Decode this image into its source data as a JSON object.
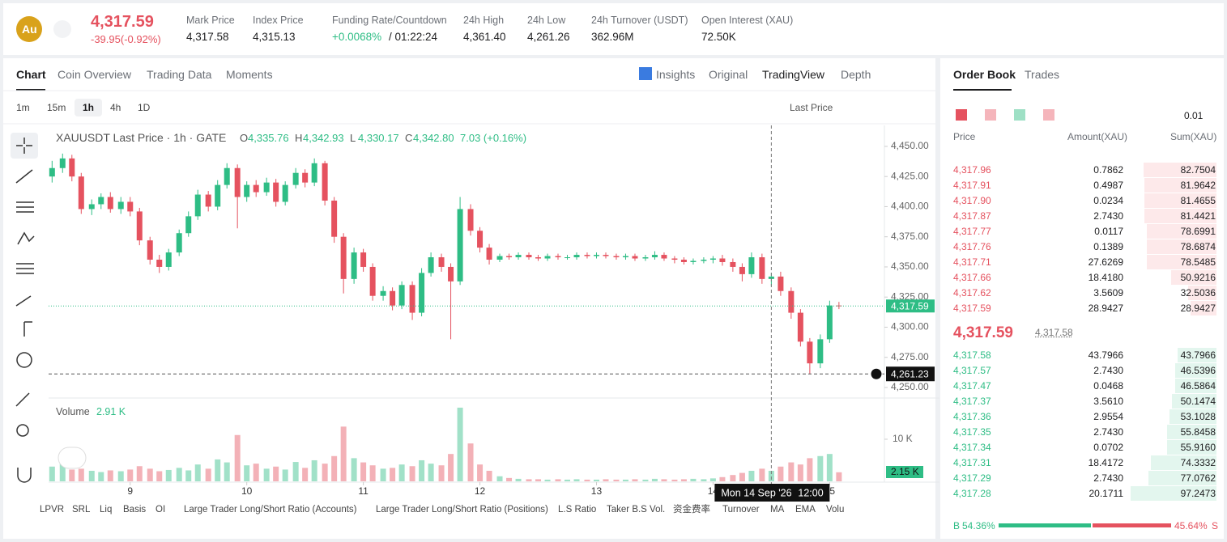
{
  "header": {
    "symbol_icon": "Au",
    "price": "4,317.59",
    "change": "-39.95(-0.92%)",
    "stats": [
      {
        "label": "Mark Price",
        "value": "4,317.58"
      },
      {
        "label": "Index Price",
        "value": "4,315.13"
      },
      {
        "label": "Funding Rate/Countdown",
        "value": "+0.0068%",
        "countdown": "/ 01:22:24"
      },
      {
        "label": "24h High",
        "value": "4,361.40"
      },
      {
        "label": "24h Low",
        "value": "4,261.26"
      },
      {
        "label": "24h Turnover (USDT)",
        "value": "362.96M"
      },
      {
        "label": "Open Interest (XAU)",
        "value": "72.50K"
      }
    ]
  },
  "tabs": [
    "Chart",
    "Coin Overview",
    "Trading Data",
    "Moments"
  ],
  "view_tabs": [
    "Insights",
    "Original",
    "TradingView",
    "Depth"
  ],
  "intervals": [
    "1m",
    "15m",
    "1h",
    "4h",
    "1D"
  ],
  "price_source": "Last Price",
  "indicators": [
    "LPVR",
    "SRL",
    "Liq",
    "Basis",
    "OI",
    "Large Trader Long/Short Ratio (Accounts)",
    "Large Trader Long/Short Ratio (Positions)",
    "L.S Ratio",
    "Taker B.S Vol.",
    "资金费率",
    "Turnover",
    "MA",
    "EMA",
    "Volu"
  ],
  "chart_data": {
    "type": "candlestick",
    "title": "XAUUSDT Last Price · 1h · GATE",
    "ohlc_legend": [
      {
        "key": "O",
        "value": "4,335.76"
      },
      {
        "key": "H",
        "value": "4,342.93"
      },
      {
        "key": "L",
        "value": "4,330.17"
      },
      {
        "key": "C",
        "value": "4,342.80"
      }
    ],
    "change": "7.03 (+0.16%)",
    "volume_title": "Volume",
    "volume_value": "2.91 K",
    "volume_last": "2.15 K",
    "up_color": "#2ebd85",
    "down_color": "#e5525f",
    "x": [
      8.33,
      8.42,
      8.5,
      8.58,
      8.67,
      8.75,
      8.83,
      8.92,
      9,
      9.08,
      9.17,
      9.25,
      9.33,
      9.42,
      9.5,
      9.58,
      9.67,
      9.75,
      9.83,
      9.92,
      10,
      10.08,
      10.17,
      10.25,
      10.33,
      10.42,
      10.5,
      10.58,
      10.67,
      10.75,
      10.83,
      10.92,
      11,
      11.08,
      11.17,
      11.25,
      11.33,
      11.42,
      11.5,
      11.58,
      11.67,
      11.75,
      11.83,
      11.92,
      12,
      12.08,
      12.17,
      12.25,
      12.33,
      12.42,
      12.5,
      12.58,
      12.67,
      12.75,
      12.83,
      12.92,
      13,
      13.08,
      13.17,
      13.25,
      13.33,
      13.42,
      13.5,
      13.58,
      13.67,
      13.75,
      13.83,
      13.92,
      14,
      14.08,
      14.17,
      14.25,
      14.33,
      14.42,
      14.5,
      14.58,
      14.67,
      14.75,
      14.83,
      14.92,
      15,
      15.08
    ],
    "open": [
      4425,
      4432,
      4440,
      4425,
      4398,
      4402,
      4408,
      4398,
      4404,
      4396,
      4372,
      4356,
      4350,
      4362,
      4378,
      4392,
      4410,
      4400,
      4418,
      4432,
      4408,
      4418,
      4412,
      4420,
      4404,
      4418,
      4428,
      4420,
      4436,
      4405,
      4375,
      4340,
      4362,
      4350,
      4326,
      4330,
      4318,
      4335,
      4312,
      4345,
      4358,
      4350,
      4338,
      4398,
      4380,
      4366,
      4356,
      4359,
      4358,
      4360,
      4358,
      4357,
      4359,
      4358,
      4358,
      4360,
      4359,
      4360,
      4359,
      4358,
      4359,
      4357,
      4358,
      4360,
      4357,
      4356,
      4354,
      4355,
      4356,
      4357,
      4354,
      4350,
      4344,
      4358,
      4340,
      4342,
      4330,
      4312,
      4288,
      4270,
      4290,
      4318
    ],
    "high": [
      4438,
      4444,
      4443,
      4428,
      4406,
      4411,
      4412,
      4408,
      4408,
      4399,
      4375,
      4360,
      4365,
      4381,
      4396,
      4414,
      4413,
      4422,
      4436,
      4435,
      4421,
      4422,
      4424,
      4423,
      4421,
      4432,
      4431,
      4440,
      4438,
      4408,
      4378,
      4366,
      4365,
      4353,
      4334,
      4333,
      4338,
      4338,
      4349,
      4362,
      4361,
      4353,
      4408,
      4402,
      4383,
      4369,
      4361,
      4361,
      4362,
      4362,
      4360,
      4361,
      4361,
      4360,
      4362,
      4362,
      4362,
      4362,
      4361,
      4361,
      4361,
      4360,
      4363,
      4362,
      4359,
      4358,
      4357,
      4358,
      4359,
      4360,
      4357,
      4353,
      4362,
      4361,
      4345,
      4346,
      4333,
      4315,
      4291,
      4294,
      4322,
      4321
    ],
    "low": [
      4420,
      4428,
      4421,
      4394,
      4393,
      4398,
      4395,
      4394,
      4392,
      4368,
      4352,
      4345,
      4347,
      4359,
      4375,
      4389,
      4396,
      4397,
      4415,
      4382,
      4404,
      4408,
      4409,
      4400,
      4401,
      4415,
      4416,
      4417,
      4401,
      4370,
      4328,
      4336,
      4346,
      4322,
      4322,
      4314,
      4315,
      4306,
      4309,
      4342,
      4346,
      4290,
      4335,
      4376,
      4362,
      4352,
      4354,
      4356,
      4356,
      4356,
      4355,
      4355,
      4356,
      4356,
      4356,
      4357,
      4357,
      4357,
      4356,
      4356,
      4355,
      4355,
      4356,
      4355,
      4353,
      4352,
      4352,
      4353,
      4353,
      4351,
      4346,
      4338,
      4341,
      4336,
      4334,
      4326,
      4307,
      4284,
      4261.23,
      4266,
      4287,
      4315
    ],
    "close": [
      4432,
      4440,
      4425,
      4398,
      4402,
      4408,
      4398,
      4404,
      4396,
      4372,
      4356,
      4350,
      4362,
      4378,
      4392,
      4410,
      4400,
      4418,
      4432,
      4408,
      4418,
      4412,
      4420,
      4404,
      4418,
      4428,
      4420,
      4436,
      4405,
      4375,
      4340,
      4362,
      4350,
      4326,
      4330,
      4318,
      4335,
      4312,
      4345,
      4358,
      4350,
      4338,
      4398,
      4380,
      4366,
      4356,
      4359,
      4358,
      4360,
      4358,
      4357,
      4359,
      4358,
      4358,
      4360,
      4359,
      4360,
      4359,
      4358,
      4359,
      4357,
      4358,
      4360,
      4357,
      4356,
      4354,
      4355,
      4356,
      4357,
      4354,
      4350,
      4344,
      4358,
      4340,
      4342,
      4330,
      4312,
      4288,
      4270,
      4290,
      4318,
      4317.59
    ],
    "volume": [
      3500,
      4200,
      2800,
      3000,
      2500,
      2200,
      2600,
      2400,
      2800,
      3600,
      3000,
      2400,
      2700,
      3200,
      2600,
      4000,
      3000,
      5200,
      4500,
      11000,
      3800,
      4200,
      3000,
      3500,
      2800,
      4600,
      3200,
      5000,
      4200,
      6000,
      13000,
      5500,
      4500,
      3800,
      3000,
      3200,
      4000,
      3600,
      5000,
      4200,
      3800,
      6500,
      17500,
      9000,
      4000,
      2500,
      1200,
      800,
      600,
      500,
      500,
      400,
      500,
      400,
      500,
      400,
      400,
      500,
      400,
      400,
      500,
      400,
      600,
      500,
      400,
      500,
      600,
      500,
      700,
      1000,
      1500,
      2000,
      2500,
      3000,
      2500,
      3500,
      4500,
      4000,
      5500,
      6000,
      6500,
      2150
    ],
    "xlim": [
      8.3,
      15.47
    ],
    "xticks": [
      9,
      10,
      11,
      12,
      13,
      14,
      15
    ],
    "ylim": [
      4242.6,
      4467.4
    ],
    "yticks": [
      {
        "value": 4250,
        "label": "4,250.00"
      },
      {
        "value": 4275,
        "label": "4,275.00"
      },
      {
        "value": 4300,
        "label": "4,300.00"
      },
      {
        "value": 4325,
        "label": "4,325.00"
      },
      {
        "value": 4350,
        "label": "4,350.00"
      },
      {
        "value": 4375,
        "label": "4,375.00"
      },
      {
        "value": 4400,
        "label": "4,400.00"
      },
      {
        "value": 4425,
        "label": "4,425.00"
      },
      {
        "value": 4450,
        "label": "4,450.00"
      }
    ],
    "volume_ylim": [
      0,
      19600
    ],
    "volume_yticks": [
      {
        "value": 10000,
        "label": "10 K"
      }
    ],
    "grid": false,
    "last_price": {
      "value": 4317.59,
      "label": "4,317.59"
    },
    "crosshair": {
      "x": 14.5,
      "value": 4261.23,
      "label": "4,261.23",
      "time": "Mon 14 Sep '26",
      "hour": "12:00"
    }
  },
  "order_book": {
    "tabs": [
      "Order Book",
      "Trades"
    ],
    "precision": "0.01",
    "columns": [
      "Price",
      "Amount(XAU)",
      "Sum(XAU)"
    ],
    "asks": [
      [
        "4,317.96",
        "0.7862",
        "82.7504"
      ],
      [
        "4,317.91",
        "0.4987",
        "81.9642"
      ],
      [
        "4,317.90",
        "0.0234",
        "81.4655"
      ],
      [
        "4,317.87",
        "2.7430",
        "81.4421"
      ],
      [
        "4,317.77",
        "0.0117",
        "78.6991"
      ],
      [
        "4,317.76",
        "0.1389",
        "78.6874"
      ],
      [
        "4,317.71",
        "27.6269",
        "78.5485"
      ],
      [
        "4,317.66",
        "18.4180",
        "50.9216"
      ],
      [
        "4,317.62",
        "3.5609",
        "32.5036"
      ],
      [
        "4,317.59",
        "28.9427",
        "28.9427"
      ]
    ],
    "mid_price": "4,317.59",
    "mark_price": "4,317.58",
    "bids": [
      [
        "4,317.58",
        "43.7966",
        "43.7966"
      ],
      [
        "4,317.57",
        "2.7430",
        "46.5396"
      ],
      [
        "4,317.47",
        "0.0468",
        "46.5864"
      ],
      [
        "4,317.37",
        "3.5610",
        "50.1474"
      ],
      [
        "4,317.36",
        "2.9554",
        "53.1028"
      ],
      [
        "4,317.35",
        "2.7430",
        "55.8458"
      ],
      [
        "4,317.34",
        "0.0702",
        "55.9160"
      ],
      [
        "4,317.31",
        "18.4172",
        "74.3332"
      ],
      [
        "4,317.29",
        "2.7430",
        "77.0762"
      ],
      [
        "4,317.28",
        "20.1711",
        "97.2473"
      ]
    ],
    "buy_label": "B",
    "buy_pct": "54.36%",
    "sell_pct": "45.64%",
    "sell_label": "S"
  }
}
